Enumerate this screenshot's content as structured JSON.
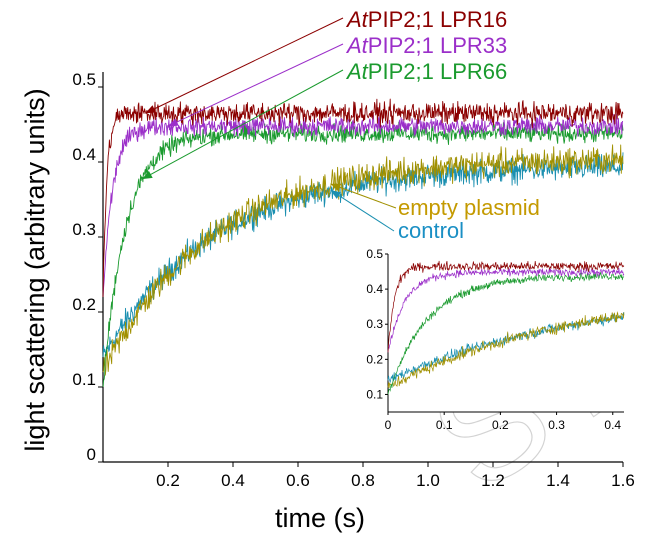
{
  "chart_data": [
    {
      "type": "line",
      "xlabel": "time (s)",
      "ylabel": "light scattering (arbitrary units)",
      "xlim": [
        0,
        1.6
      ],
      "ylim": [
        0,
        0.52
      ],
      "x_ticks": [
        "0.2",
        "0.4",
        "0.6",
        "0.8",
        "1.0",
        "1.2",
        "1.4",
        "1.6"
      ],
      "y_ticks": [
        "0",
        "0.1",
        "0.2",
        "0.3",
        "0.4",
        "0.5"
      ],
      "grid": false,
      "series": [
        {
          "name_italic": "At",
          "name_rest": "PIP2;1 LPR16",
          "color": "#8b0000",
          "start": 0.22,
          "plateau": 0.465,
          "tau": 0.012,
          "noise": 0.014
        },
        {
          "name_italic": "At",
          "name_rest": "PIP2;1 LPR33",
          "color": "#9b2fc9",
          "start": 0.22,
          "plateau": 0.448,
          "tau": 0.03,
          "noise": 0.012
        },
        {
          "name_italic": "At",
          "name_rest": "PIP2;1 LPR66",
          "color": "#1a9a2e",
          "start": 0.1,
          "plateau": 0.438,
          "tau": 0.07,
          "noise": 0.012
        },
        {
          "name_italic": "",
          "name_rest": "empty plasmid",
          "color": "#a09000",
          "start": 0.12,
          "plateau": 0.405,
          "tau": 0.33,
          "noise": 0.018
        },
        {
          "name_italic": "",
          "name_rest": "control",
          "color": "#1a8fb0",
          "start": 0.14,
          "plateau": 0.395,
          "tau": 0.34,
          "noise": 0.016
        }
      ],
      "legend_text_colors": [
        "#8b0000",
        "#9b2fc9",
        "#1a9a2e",
        "#c49a00",
        "#1a8fc4"
      ]
    },
    {
      "type": "line",
      "xlim": [
        0,
        0.42
      ],
      "ylim": [
        0.05,
        0.5
      ],
      "x_ticks": [
        "0",
        "0.1",
        "0.2",
        "0.3",
        "0.4"
      ],
      "y_ticks": [
        "0.1",
        "0.2",
        "0.3",
        "0.4",
        "0.5"
      ],
      "series_colors": [
        "#8b0000",
        "#9b2fc9",
        "#1a9a2e",
        "#a09000",
        "#1a8fb0"
      ]
    }
  ],
  "watermark": "ST"
}
